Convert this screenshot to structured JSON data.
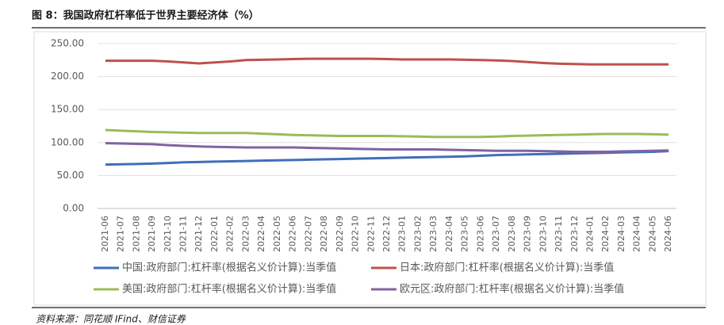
{
  "chart_data": {
    "type": "line",
    "title": "图 8：我国政府杠杆率低于世界主要经济体（%）",
    "source": "资料来源：同花顺 IFind、财信证券",
    "categories": [
      "2021-06",
      "2021-07",
      "2021-08",
      "2021-09",
      "2021-10",
      "2021-11",
      "2021-12",
      "2022-01",
      "2022-02",
      "2022-03",
      "2022-04",
      "2022-05",
      "2022-06",
      "2022-07",
      "2022-08",
      "2022-09",
      "2022-10",
      "2022-11",
      "2022-12",
      "2023-01",
      "2023-02",
      "2023-03",
      "2023-04",
      "2023-05",
      "2023-06",
      "2023-07",
      "2023-08",
      "2023-09",
      "2023-10",
      "2023-11",
      "2023-12",
      "2024-01",
      "2024-02",
      "2024-03",
      "2024-04",
      "2024-05",
      "2024-06"
    ],
    "series": [
      {
        "name": "中国:政府部门:杠杆率(根据名义价计算):当季值",
        "color": "#3f6fba",
        "values": [
          66.5,
          67,
          67.5,
          68,
          69,
          70,
          70.5,
          71,
          71.5,
          72,
          72.5,
          73,
          73.5,
          74,
          74.5,
          75,
          75.5,
          76,
          76.5,
          77,
          77.5,
          78,
          78.5,
          79,
          80,
          81,
          81.5,
          82,
          82.5,
          83,
          83.5,
          84,
          84.5,
          85,
          85.5,
          86,
          87
        ]
      },
      {
        "name": "日本:政府部门:杠杆率(根据名义价计算):当季值",
        "color": "#c0504d",
        "values": [
          224,
          224,
          224,
          224,
          223,
          221.5,
          220,
          221.5,
          223,
          225,
          225.5,
          226,
          226.5,
          227,
          227,
          227,
          227,
          227,
          226.5,
          226,
          226,
          226,
          226,
          225.5,
          225,
          224.5,
          223.5,
          222,
          220.5,
          219.5,
          219,
          218.5,
          218.5,
          218.5,
          218.5,
          218.5,
          218.5
        ]
      },
      {
        "name": "美国:政府部门:杠杆率(根据名义价计算):当季值",
        "color": "#9bbb59",
        "values": [
          119,
          118,
          117,
          116,
          115.5,
          115,
          114.5,
          114.5,
          114.5,
          114.5,
          113.5,
          112.5,
          111.5,
          111,
          110.5,
          110,
          110,
          110,
          110,
          109.5,
          109,
          108.5,
          108.5,
          108.5,
          108.5,
          109,
          110,
          110.5,
          111,
          111.5,
          112,
          112.5,
          113,
          113,
          113,
          112.5,
          112
        ]
      },
      {
        "name": "欧元区:政府部门:杠杆率(根据名义价计算):当季值",
        "color": "#8064a2",
        "values": [
          99,
          98.5,
          98,
          97.5,
          96,
          95,
          94,
          93.5,
          93,
          92.5,
          92.5,
          92.5,
          92.5,
          92,
          91.5,
          91,
          90.5,
          90,
          89.5,
          89.5,
          89.5,
          89.5,
          89,
          88.5,
          88,
          87.5,
          87.5,
          87.5,
          87,
          86.5,
          86,
          86,
          86,
          86.5,
          87,
          87.5,
          88
        ]
      }
    ],
    "ylim": [
      0,
      250
    ],
    "yticks": [
      {
        "value": 0,
        "label": "0.00"
      },
      {
        "value": 50,
        "label": "50.00"
      },
      {
        "value": 100,
        "label": "100.00"
      },
      {
        "value": 150,
        "label": "150.00"
      },
      {
        "value": 200,
        "label": "200.00"
      },
      {
        "value": 250,
        "label": "250.00"
      }
    ],
    "grid": true,
    "legend": "bottom"
  }
}
